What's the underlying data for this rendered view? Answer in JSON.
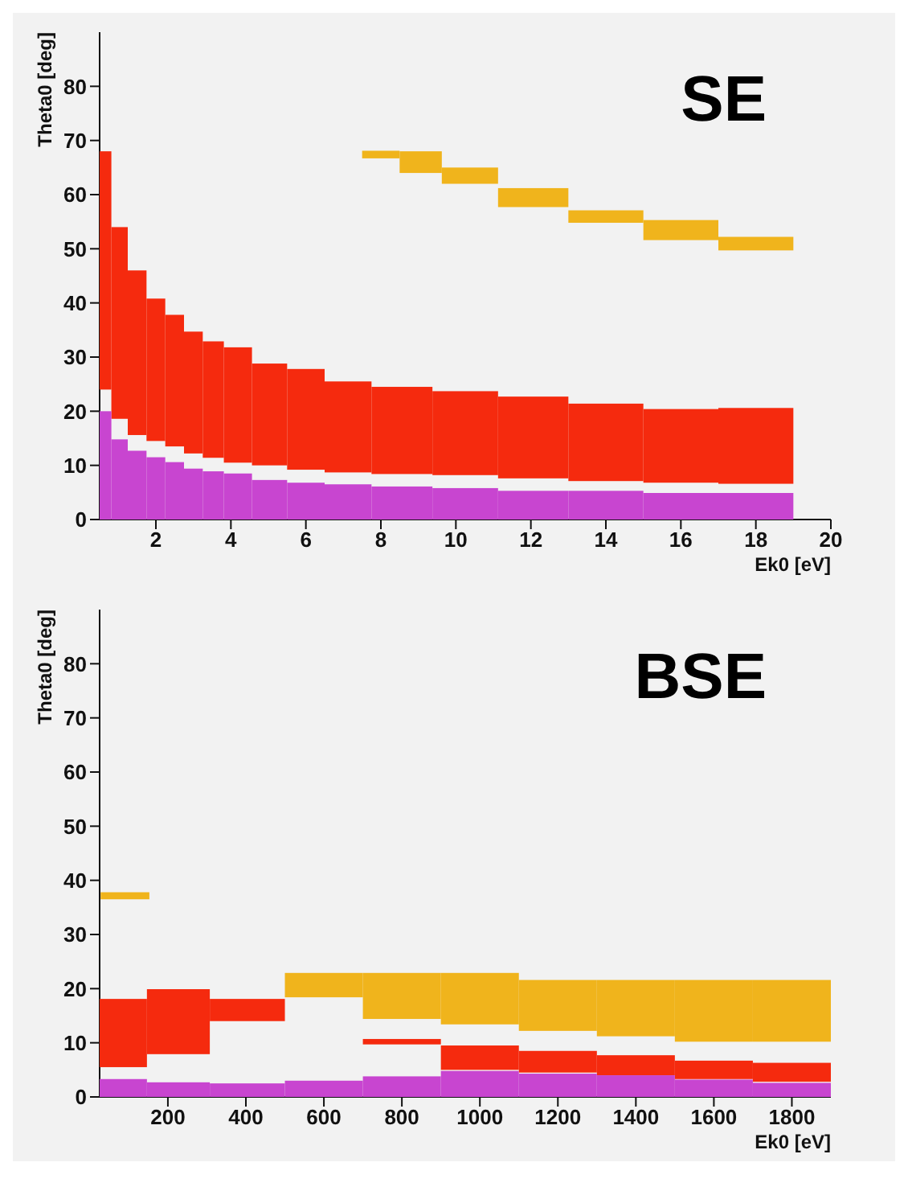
{
  "chart_data": [
    {
      "type": "bar",
      "annotations": [
        "SE"
      ],
      "xlabel": "Ek0 [eV]",
      "ylabel": "Theta0 [deg]",
      "xlim": [
        0.5,
        20
      ],
      "xticks": [
        2,
        4,
        6,
        8,
        10,
        12,
        14,
        16,
        18,
        20
      ],
      "ylim": [
        0,
        90
      ],
      "yticks": [
        0,
        10,
        20,
        30,
        40,
        50,
        60,
        70,
        80
      ],
      "series": [
        {
          "color": "#f0b41c",
          "x": [
            8,
            9,
            10.25,
            12,
            14,
            16,
            18
          ],
          "base": [
            66.7,
            64,
            62,
            57.7,
            54.8,
            51.6,
            49.7
          ],
          "values": [
            1.4,
            4,
            3,
            3.5,
            2.3,
            3.7,
            2.5
          ]
        },
        {
          "color": "#f52a0e",
          "x": [
            0.625,
            1,
            1.5,
            2,
            2.5,
            3,
            3.5,
            4.125,
            5,
            6,
            7,
            8.5,
            10.25,
            12,
            14,
            16,
            18
          ],
          "base": [
            24,
            18.6,
            15.6,
            14.5,
            13.5,
            12.2,
            11.4,
            10.5,
            10,
            9.2,
            8.7,
            8.4,
            8.2,
            7.6,
            7.1,
            6.8,
            6.6
          ],
          "values": [
            44,
            35.4,
            30.4,
            26.3,
            24.3,
            22.5,
            21.5,
            21.3,
            18.8,
            18.6,
            16.8,
            16.1,
            15.5,
            15.1,
            14.3,
            13.6,
            14
          ]
        },
        {
          "color": "#c845d0",
          "x": [
            0.625,
            1,
            1.5,
            2,
            2.5,
            3,
            3.5,
            4.125,
            5,
            6,
            7,
            8.5,
            10.25,
            12,
            14,
            16,
            18
          ],
          "base": [
            0,
            0,
            0,
            0,
            0,
            0,
            0,
            0,
            0,
            0,
            0,
            0,
            0,
            0,
            0,
            0,
            0
          ],
          "values": [
            20,
            14.8,
            12.7,
            11.5,
            10.6,
            9.4,
            8.9,
            8.5,
            7.3,
            6.8,
            6.5,
            6.1,
            5.8,
            5.3,
            5.3,
            4.9,
            4.9
          ]
        }
      ]
    },
    {
      "type": "bar",
      "annotations": [
        "BSE"
      ],
      "xlabel": "Ek0 [eV]",
      "ylabel": "Theta0 [deg]",
      "xlim": [
        25,
        1900
      ],
      "xticks": [
        200,
        400,
        600,
        800,
        1000,
        1200,
        1400,
        1600,
        1800
      ],
      "ylim": [
        0,
        90
      ],
      "yticks": [
        0,
        10,
        20,
        30,
        40,
        50,
        60,
        70,
        80
      ],
      "series": [
        {
          "color": "#f0b41c",
          "x": [
            90,
            215,
            400,
            600,
            800,
            1000,
            1200,
            1400,
            1600,
            1800
          ],
          "base": [
            36.5,
            null,
            null,
            18.4,
            14.4,
            13.4,
            12.2,
            11.2,
            10.2,
            10.2
          ],
          "values": [
            1.3,
            null,
            null,
            4.5,
            8.5,
            9.5,
            9.4,
            10.4,
            11.4,
            11.4
          ]
        },
        {
          "color": "#f52a0e",
          "x": [
            77.5,
            215,
            400,
            600,
            800,
            1000,
            1200,
            1400,
            1600,
            1800
          ],
          "base": [
            5.5,
            7.9,
            14,
            null,
            9.7,
            5,
            4.5,
            4,
            3.3,
            2.8
          ],
          "values": [
            12.6,
            12,
            4.1,
            null,
            1,
            4.5,
            4,
            3.7,
            3.4,
            3.5
          ]
        },
        {
          "color": "#c845d0",
          "x": [
            77.5,
            215,
            400,
            600,
            800,
            1000,
            1200,
            1400,
            1600,
            1800
          ],
          "base": [
            0,
            0,
            0,
            0,
            0,
            0,
            0,
            0,
            0,
            0
          ],
          "values": [
            3.3,
            2.7,
            2.5,
            3,
            3.8,
            4.8,
            4.3,
            4,
            3.2,
            2.6
          ]
        }
      ]
    }
  ]
}
